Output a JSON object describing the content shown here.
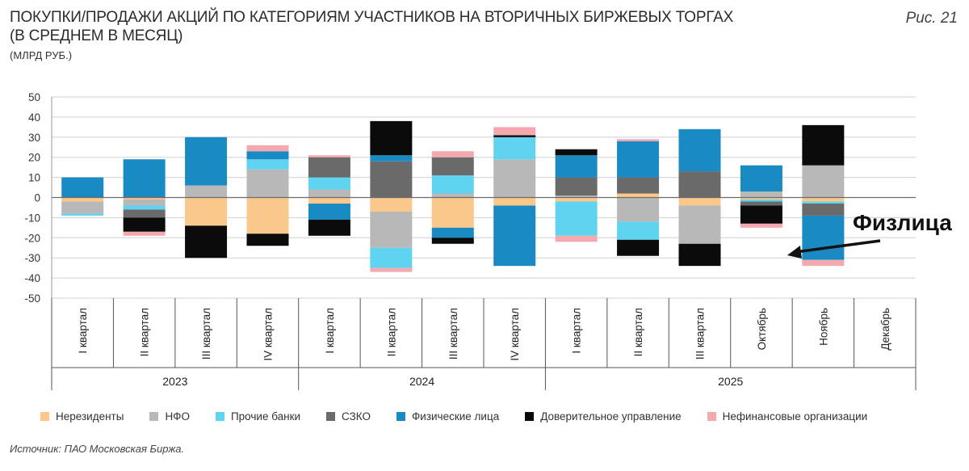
{
  "header": {
    "title_line1": "ПОКУПКИ/ПРОДАЖИ АКЦИЙ ПО КАТЕГОРИЯМ УЧАСТНИКОВ НА ВТОРИЧНЫХ БИРЖЕВЫХ ТОРГАХ",
    "title_line2": "(В СРЕДНЕМ В МЕСЯЦ)",
    "units": "(МЛРД РУБ.)",
    "figure_label": "Рис. 21"
  },
  "annotation": {
    "text": "Физлица",
    "target_category_index": 11,
    "target_series": "Физические лица"
  },
  "source": "Источник: ПАО Московская Биржа.",
  "chart_data": {
    "type": "bar",
    "stacked": true,
    "title": "ПОКУПКИ/ПРОДАЖИ АКЦИЙ ПО КАТЕГОРИЯМ УЧАСТНИКОВ НА ВТОРИЧНЫХ БИРЖЕВЫХ ТОРГАХ (В СРЕДНЕМ В МЕСЯЦ)",
    "ylabel": "МЛРД РУБ.",
    "ylim": [
      -50,
      50
    ],
    "yticks": [
      50,
      40,
      30,
      20,
      10,
      0,
      -10,
      -20,
      -30,
      -40,
      -50
    ],
    "grid": true,
    "legend_position": "bottom",
    "categories": [
      "I квартал",
      "II квартал",
      "III квартал",
      "IV квартал",
      "I квартал",
      "II квартал",
      "III квартал",
      "IV квартал",
      "I квартал",
      "II квартал",
      "III квартал",
      "Октябрь",
      "Ноябрь",
      "Декабрь"
    ],
    "groups": [
      {
        "label": "2023",
        "count": 4
      },
      {
        "label": "2024",
        "count": 4
      },
      {
        "label": "2025",
        "count": 6
      }
    ],
    "series": [
      {
        "name": "Нерезиденты",
        "color": "#f9c88a",
        "values": [
          -2,
          -1,
          -14,
          -18,
          -3,
          -7,
          -15,
          -4,
          -2,
          2,
          -4,
          -1,
          -2,
          0
        ]
      },
      {
        "name": "НФО",
        "color": "#b8b8b8",
        "values": [
          -6,
          -3,
          6,
          14,
          4,
          -18,
          2,
          19,
          1,
          -12,
          -19,
          3,
          16,
          0
        ]
      },
      {
        "name": "Прочие банки",
        "color": "#5fd3f0",
        "values": [
          -1,
          -2,
          0,
          5,
          6,
          -10,
          9,
          11,
          -17,
          -9,
          0,
          -1,
          -1,
          0
        ]
      },
      {
        "name": "СЗКО",
        "color": "#6a6a6a",
        "values": [
          0,
          -4,
          0,
          0,
          10,
          18,
          9,
          0,
          9,
          8,
          13,
          -2,
          -6,
          0
        ]
      },
      {
        "name": "Физические лица",
        "color": "#1a8ac3",
        "values": [
          10,
          19,
          24,
          4,
          -8,
          3,
          -5,
          -30,
          11,
          18,
          21,
          13,
          -22,
          0
        ]
      },
      {
        "name": "Доверительное управление",
        "color": "#0b0b0b",
        "values": [
          0,
          -7,
          -16,
          -6,
          -8,
          17,
          -3,
          1,
          3,
          -8,
          -11,
          -9,
          20,
          0
        ]
      },
      {
        "name": "Нефинансовые организации",
        "color": "#f5a9ae",
        "values": [
          0,
          -2,
          0,
          3,
          1,
          -2,
          3,
          4,
          -3,
          1,
          0,
          -2,
          -3,
          0
        ]
      }
    ]
  }
}
